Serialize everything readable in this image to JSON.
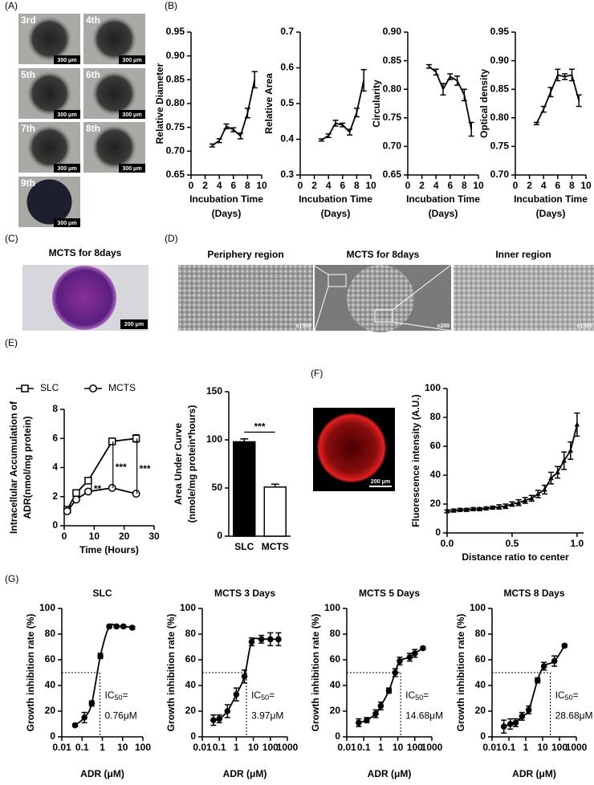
{
  "panel_labels": [
    "(A)",
    "(B)",
    "(C)",
    "(D)",
    "(E)",
    "(F)",
    "(G)"
  ],
  "panel_a": {
    "tiles": [
      {
        "label": "3rd",
        "scale_bar": "300 μm"
      },
      {
        "label": "4th",
        "scale_bar": "300 μm"
      },
      {
        "label": "5th",
        "scale_bar": "300 μm"
      },
      {
        "label": "6th",
        "scale_bar": "300 μm"
      },
      {
        "label": "7th",
        "scale_bar": "300 μm"
      },
      {
        "label": "8th",
        "scale_bar": "300 μm"
      },
      {
        "label": "9th",
        "scale_bar": "300 μm"
      }
    ]
  },
  "panel_c": {
    "title": "MCTS for 8days",
    "scale_bar": "200 μm"
  },
  "panel_d": {
    "titles": [
      "Periphery region",
      "MCTS for 8days",
      "Inner region"
    ],
    "magnifications": [
      "x1500",
      "x200",
      "x1500"
    ]
  },
  "panel_f": {
    "scale_bar": "200 μm"
  },
  "chart_data": [
    {
      "type": "line",
      "ylabel": "Relative Diameter",
      "xlabel": [
        "Incubation Time",
        "(Days)"
      ],
      "xlim": [
        0,
        10
      ],
      "xticks": [
        0,
        2,
        4,
        6,
        8,
        10
      ],
      "ylim": [
        0.65,
        0.95
      ],
      "yticks": [
        0.65,
        {
          "value": 0.7,
          "label": "0.70"
        },
        0.75,
        {
          "value": 0.8,
          "label": "0.80"
        },
        0.85,
        {
          "value": 0.9,
          "label": "0.90"
        },
        0.95
      ],
      "x": [
        3,
        4,
        5,
        6,
        7,
        8,
        9
      ],
      "series": [
        {
          "color": "#000000",
          "values": [
            0.712,
            0.722,
            0.752,
            0.745,
            0.732,
            0.78,
            0.85
          ],
          "errors": [
            0.003,
            0.004,
            0.005,
            0.004,
            0.006,
            0.01,
            0.017
          ]
        }
      ]
    },
    {
      "type": "line",
      "ylabel": "Relative Area",
      "xlabel": [
        "Incubation Time",
        "(Days)"
      ],
      "xlim": [
        0,
        10
      ],
      "xticks": [
        0,
        2,
        4,
        6,
        8,
        10
      ],
      "ylim": [
        0.3,
        0.7
      ],
      "yticks": [
        0.3,
        0.4,
        0.5,
        0.6,
        0.7
      ],
      "x": [
        3,
        4,
        5,
        6,
        7,
        8,
        9
      ],
      "series": [
        {
          "color": "#000000",
          "values": [
            0.398,
            0.41,
            0.445,
            0.44,
            0.42,
            0.475,
            0.565
          ],
          "errors": [
            0.003,
            0.005,
            0.008,
            0.005,
            0.008,
            0.012,
            0.03
          ]
        }
      ]
    },
    {
      "type": "line",
      "ylabel": "Circularity",
      "xlabel": [
        "Incubation Time",
        "(Days)"
      ],
      "xlim": [
        0,
        10
      ],
      "xticks": [
        0,
        2,
        4,
        6,
        8,
        10
      ],
      "ylim": [
        0.65,
        0.9
      ],
      "yticks": [
        0.65,
        {
          "value": 0.7,
          "label": "0.70"
        },
        0.75,
        {
          "value": 0.8,
          "label": "0.80"
        },
        0.85,
        {
          "value": 0.9,
          "label": "0.90"
        }
      ],
      "x": [
        3,
        4,
        5,
        6,
        7,
        8,
        9
      ],
      "series": [
        {
          "color": "#000000",
          "values": [
            0.84,
            0.83,
            0.8,
            0.822,
            0.815,
            0.79,
            0.73
          ],
          "errors": [
            0.003,
            0.005,
            0.01,
            0.005,
            0.008,
            0.01,
            0.012
          ]
        }
      ]
    },
    {
      "type": "line",
      "ylabel": "Optical density",
      "xlabel": [
        "Incubation Time",
        "(Days)"
      ],
      "xlim": [
        0,
        10
      ],
      "xticks": [
        0,
        2,
        4,
        6,
        8,
        10
      ],
      "ylim": [
        0.7,
        0.95
      ],
      "yticks": [
        {
          "value": 0.7,
          "label": "0.70"
        },
        0.75,
        {
          "value": 0.8,
          "label": "0.80"
        },
        0.85,
        {
          "value": 0.9,
          "label": "0.90"
        },
        0.95
      ],
      "x": [
        3,
        4,
        5,
        6,
        7,
        8,
        9
      ],
      "series": [
        {
          "color": "#000000",
          "values": [
            0.79,
            0.815,
            0.845,
            0.875,
            0.872,
            0.875,
            0.83
          ],
          "errors": [
            0.002,
            0.005,
            0.008,
            0.01,
            0.005,
            0.01,
            0.01
          ]
        }
      ]
    },
    {
      "type": "line",
      "ylabel": [
        "Intracellular Accumulation of",
        "ADR(nmol/mg protein)"
      ],
      "xlabel": "Time (Hours)",
      "xlim": [
        0,
        30
      ],
      "xticks": [
        0,
        10,
        20,
        30
      ],
      "ylim": [
        0,
        8
      ],
      "yticks": [
        0,
        2,
        4,
        6,
        8
      ],
      "x": [
        1,
        4,
        8,
        16,
        24
      ],
      "series": [
        {
          "name": "SLC",
          "color": "#000000",
          "marker": "square-open",
          "values": [
            1.1,
            2.25,
            3.1,
            5.8,
            6.0
          ],
          "errors": [
            0.1,
            0.1,
            0.15,
            0.2,
            0.25
          ]
        },
        {
          "name": "MCTS",
          "color": "#000000",
          "marker": "circle-open",
          "values": [
            1.0,
            1.8,
            2.35,
            2.6,
            2.2
          ],
          "errors": [
            0.1,
            0.1,
            0.1,
            0.1,
            0.1
          ]
        }
      ],
      "annotations": [
        "**",
        "***",
        "***"
      ]
    },
    {
      "type": "bar",
      "ylabel": [
        "Area Under Curve",
        "(nmole/mg protein*hours)"
      ],
      "categories": [
        "SLC",
        "MCTS"
      ],
      "values": [
        98,
        51
      ],
      "errors": [
        3,
        3
      ],
      "colors": [
        "#000000",
        "#ffffff"
      ],
      "ylim": [
        0,
        150
      ],
      "yticks": [
        0,
        50,
        100,
        150
      ],
      "annotations": [
        "***"
      ]
    },
    {
      "type": "line",
      "ylabel": "Fluorescence intensity (A.U.)",
      "xlabel": "Distance ratio to center",
      "xlim": [
        0,
        1.05
      ],
      "xticks": [
        {
          "value": 0,
          "label": "0.0"
        },
        0.5,
        {
          "value": 1,
          "label": "1.0"
        }
      ],
      "ylim": [
        0,
        100
      ],
      "yticks": [
        0,
        20,
        40,
        60,
        80,
        100
      ],
      "x": [
        0,
        0.05,
        0.1,
        0.15,
        0.2,
        0.25,
        0.3,
        0.35,
        0.4,
        0.45,
        0.5,
        0.55,
        0.6,
        0.65,
        0.7,
        0.75,
        0.8,
        0.85,
        0.9,
        0.95,
        1
      ],
      "series": [
        {
          "color": "#000000",
          "marker": "triangle",
          "values": [
            15,
            15.5,
            16,
            16,
            16.5,
            16.5,
            17,
            17.5,
            18,
            18.5,
            20,
            21,
            22.5,
            24,
            27,
            30,
            38,
            42,
            50,
            57,
            75
          ],
          "errors": [
            1,
            1,
            1,
            1,
            1,
            1,
            1,
            1,
            1.5,
            1.5,
            1.5,
            2,
            2,
            2,
            2.5,
            3,
            4,
            4,
            6,
            6,
            8
          ]
        }
      ]
    },
    {
      "type": "line",
      "title": "SLC",
      "ylabel": "Growth inhibition rate (%)",
      "xlabel": "ADR (μM)",
      "log_x": true,
      "smooth": true,
      "xlim": [
        0.01,
        100
      ],
      "xticks": [
        0.01,
        0.1,
        1,
        10,
        100
      ],
      "ylim": [
        0,
        100
      ],
      "yticks": [
        0,
        20,
        40,
        60,
        80,
        100
      ],
      "x": [
        0.045,
        0.13,
        0.3,
        0.8,
        2.2,
        5,
        11,
        30
      ],
      "series": [
        {
          "color": "#000000",
          "marker": "circle",
          "values": [
            9,
            15,
            26,
            63,
            86,
            86,
            86,
            85
          ],
          "errors": [
            1,
            4,
            2,
            2,
            1,
            1,
            1,
            1
          ]
        }
      ],
      "ic50": 0.76,
      "ic50_response": 50,
      "ic50_prefix": "IC",
      "ic50_subscript": "50",
      "ic50_suffix": "=",
      "ic50_label": "0.76μM"
    },
    {
      "type": "line",
      "title": "MCTS  3 Days",
      "ylabel": "Growth inhibition rate (%)",
      "xlabel": "ADR (μM)",
      "log_x": true,
      "smooth": true,
      "xlim": [
        0.01,
        1000
      ],
      "xticks": [
        0.01,
        0.1,
        1,
        10,
        100,
        1000
      ],
      "ylim": [
        0,
        100
      ],
      "yticks": [
        0,
        20,
        40,
        60,
        80,
        100
      ],
      "x": [
        0.045,
        0.1,
        0.3,
        1,
        3,
        8,
        30,
        100,
        300
      ],
      "series": [
        {
          "color": "#000000",
          "marker": "circle",
          "values": [
            13,
            14,
            20,
            33,
            47,
            74,
            76,
            76,
            76
          ],
          "errors": [
            4,
            3,
            5,
            5,
            5,
            3,
            3,
            5,
            5
          ]
        }
      ],
      "ic50": 3.97,
      "ic50_response": 50,
      "ic50_prefix": "IC",
      "ic50_subscript": "50",
      "ic50_suffix": "=",
      "ic50_label": "3.97μM"
    },
    {
      "type": "line",
      "title": "MCTS 5 Days",
      "ylabel": "Growth inhibition rate (%)",
      "xlabel": "ADR (μM)",
      "log_x": true,
      "smooth": true,
      "xlim": [
        0.01,
        1000
      ],
      "xticks": [
        0.01,
        0.1,
        1,
        10,
        100,
        1000
      ],
      "ylim": [
        0,
        100
      ],
      "yticks": [
        0,
        20,
        40,
        60,
        80,
        100
      ],
      "x": [
        0.05,
        0.15,
        0.5,
        1,
        3,
        7,
        13,
        50,
        100,
        300
      ],
      "series": [
        {
          "color": "#000000",
          "marker": "circle",
          "values": [
            11,
            13,
            18,
            24,
            36,
            50,
            59,
            62,
            65,
            69
          ],
          "errors": [
            3,
            2,
            3,
            3,
            2,
            3,
            3,
            3,
            3,
            1
          ]
        }
      ],
      "ic50": 14.68,
      "ic50_response": 50,
      "ic50_prefix": "IC",
      "ic50_subscript": "50",
      "ic50_suffix": "=",
      "ic50_label": "14.68μM"
    },
    {
      "type": "line",
      "title": "MCTS 8 Days",
      "ylabel": "Growth inhibition rate (%)",
      "xlabel": "ADR (μM)",
      "log_x": true,
      "smooth": true,
      "xlim": [
        0.01,
        1000
      ],
      "xticks": [
        0.01,
        0.1,
        1,
        10,
        100,
        1000
      ],
      "ylim": [
        0,
        100
      ],
      "yticks": [
        0,
        20,
        40,
        60,
        80,
        100
      ],
      "x": [
        0.05,
        0.12,
        0.25,
        0.6,
        1.5,
        5,
        12,
        50,
        200
      ],
      "series": [
        {
          "color": "#000000",
          "marker": "circle",
          "values": [
            8,
            10,
            11,
            16,
            21,
            44,
            55,
            59,
            71
          ],
          "errors": [
            5,
            4,
            3,
            3,
            3,
            2,
            3,
            4,
            1
          ]
        }
      ],
      "ic50": 28.68,
      "ic50_response": 50,
      "ic50_prefix": "IC",
      "ic50_subscript": "50",
      "ic50_suffix": "=",
      "ic50_label": "28.68μM"
    }
  ]
}
